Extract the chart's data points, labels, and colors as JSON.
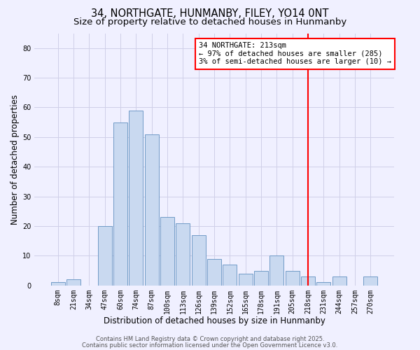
{
  "title": "34, NORTHGATE, HUNMANBY, FILEY, YO14 0NT",
  "subtitle": "Size of property relative to detached houses in Hunmanby",
  "xlabel": "Distribution of detached houses by size in Hunmanby",
  "ylabel": "Number of detached properties",
  "bar_labels": [
    "8sqm",
    "21sqm",
    "34sqm",
    "47sqm",
    "60sqm",
    "74sqm",
    "87sqm",
    "100sqm",
    "113sqm",
    "126sqm",
    "139sqm",
    "152sqm",
    "165sqm",
    "178sqm",
    "191sqm",
    "205sqm",
    "218sqm",
    "231sqm",
    "244sqm",
    "257sqm",
    "270sqm"
  ],
  "bar_heights": [
    1,
    2,
    0,
    20,
    55,
    59,
    51,
    23,
    21,
    17,
    9,
    7,
    4,
    5,
    10,
    5,
    3,
    1,
    3,
    0,
    3
  ],
  "bar_color": "#c9d9f0",
  "bar_edge_color": "#6090c0",
  "background_color": "#f0f0ff",
  "grid_color": "#d0d0e8",
  "vline_color": "red",
  "vline_x": 16.0,
  "annotation_text_line1": "34 NORTHGATE: 213sqm",
  "annotation_text_line2": "← 97% of detached houses are smaller (285)",
  "annotation_text_line3": "3% of semi-detached houses are larger (10) →",
  "ylim": [
    0,
    85
  ],
  "yticks": [
    0,
    10,
    20,
    30,
    40,
    50,
    60,
    70,
    80
  ],
  "title_fontsize": 10.5,
  "subtitle_fontsize": 9.5,
  "axis_label_fontsize": 8.5,
  "tick_fontsize": 7,
  "annotation_fontsize": 7.5,
  "footer_fontsize": 6,
  "footer_line1": "Contains HM Land Registry data © Crown copyright and database right 2025.",
  "footer_line2": "Contains public sector information licensed under the Open Government Licence v3.0."
}
